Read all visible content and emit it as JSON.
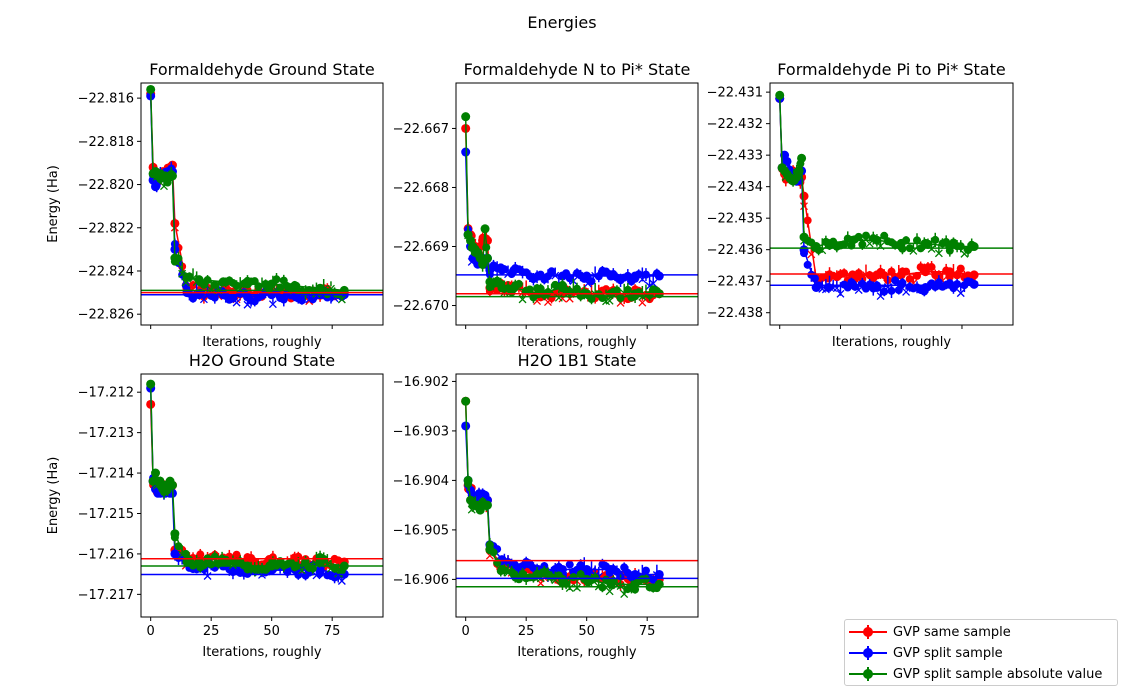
{
  "figure": {
    "title": "Energies"
  },
  "colors": {
    "same": "#ff0000",
    "split": "#0000ff",
    "abs": "#008000"
  },
  "legend": {
    "placement": "bottom-right",
    "entries": [
      {
        "label": "GVP same sample",
        "color": "#ff0000"
      },
      {
        "label": "GVP split sample",
        "color": "#0000ff"
      },
      {
        "label": "GVP split sample absolute value",
        "color": "#008000"
      }
    ]
  },
  "chart_data": [
    {
      "type": "line",
      "title": "Formaldehyde Ground State",
      "xlabel": "Iterations, roughly",
      "ylabel": "Energy (Ha)",
      "xlim": [
        -4,
        96
      ],
      "ylim": [
        -22.8265,
        -22.8153
      ],
      "x_ticks": [],
      "y_ticks": [
        "−22.816",
        "−22.818",
        "−22.820",
        "−22.822",
        "−22.824",
        "−22.826"
      ],
      "y_tick_values": [
        -22.816,
        -22.818,
        -22.82,
        -22.822,
        -22.824,
        -22.826
      ],
      "reference_lines": {
        "same": -22.825,
        "split": -22.8251,
        "abs": -22.8249
      },
      "series": [
        {
          "name": "GVP same sample",
          "key": "same",
          "x": [
            0,
            1,
            2,
            3,
            4,
            5,
            6,
            7,
            8,
            9,
            10,
            15,
            20,
            30,
            40,
            50,
            60,
            70,
            80
          ],
          "y": [
            -22.8158,
            -22.8192,
            -22.8194,
            -22.8195,
            -22.8195,
            -22.8194,
            -22.8194,
            -22.8193,
            -22.8192,
            -22.8191,
            -22.8218,
            -22.8248,
            -22.825,
            -22.8249,
            -22.825,
            -22.8249,
            -22.8251,
            -22.8249,
            -22.825
          ]
        },
        {
          "name": "GVP split sample",
          "key": "split",
          "x": [
            0,
            1,
            2,
            3,
            4,
            5,
            6,
            7,
            8,
            9,
            10,
            15,
            20,
            30,
            40,
            50,
            60,
            70,
            80
          ],
          "y": [
            -22.8159,
            -22.8198,
            -22.8201,
            -22.8196,
            -22.8195,
            -22.8195,
            -22.8196,
            -22.8194,
            -22.8194,
            -22.8194,
            -22.823,
            -22.825,
            -22.8251,
            -22.8251,
            -22.8252,
            -22.8251,
            -22.8252,
            -22.8251,
            -22.8251
          ]
        },
        {
          "name": "GVP split sample absolute value",
          "key": "abs",
          "x": [
            0,
            1,
            2,
            3,
            4,
            5,
            6,
            7,
            8,
            9,
            10,
            15,
            20,
            30,
            40,
            50,
            60,
            70,
            80
          ],
          "y": [
            -22.8156,
            -22.8195,
            -22.8194,
            -22.8196,
            -22.8195,
            -22.8196,
            -22.8196,
            -22.8197,
            -22.8196,
            -22.8196,
            -22.8234,
            -22.8243,
            -22.8244,
            -22.8245,
            -22.8246,
            -22.8246,
            -22.8247,
            -22.8248,
            -22.8249
          ]
        }
      ]
    },
    {
      "type": "line",
      "title": "Formaldehyde N to Pi* State",
      "xlabel": "Iterations, roughly",
      "ylabel": "",
      "xlim": [
        -4,
        96
      ],
      "ylim": [
        -22.67033,
        -22.66623
      ],
      "x_ticks": [],
      "y_ticks": [
        "−22.667",
        "−22.668",
        "−22.669",
        "−22.670"
      ],
      "y_tick_values": [
        -22.667,
        -22.668,
        -22.669,
        -22.67
      ],
      "reference_lines": {
        "same": -22.6698,
        "split": -22.66948,
        "abs": -22.66985
      },
      "series": [
        {
          "name": "GVP same sample",
          "key": "same",
          "x": [
            0,
            1,
            2,
            3,
            4,
            5,
            6,
            7,
            8,
            9,
            10,
            15,
            20,
            30,
            40,
            50,
            60,
            70,
            80
          ],
          "y": [
            -22.667,
            -22.6687,
            -22.6688,
            -22.669,
            -22.669,
            -22.6691,
            -22.669,
            -22.6689,
            -22.669,
            -22.6689,
            -22.6697,
            -22.6697,
            -22.6697,
            -22.6698,
            -22.6698,
            -22.6698,
            -22.6698,
            -22.6698,
            -22.6698
          ]
        },
        {
          "name": "GVP split sample",
          "key": "split",
          "x": [
            0,
            1,
            2,
            3,
            4,
            5,
            6,
            7,
            8,
            9,
            10,
            15,
            20,
            30,
            40,
            50,
            60,
            70,
            80
          ],
          "y": [
            -22.6674,
            -22.6688,
            -22.669,
            -22.6692,
            -22.6692,
            -22.6693,
            -22.6692,
            -22.6692,
            -22.6693,
            -22.6692,
            -22.6694,
            -22.6694,
            -22.6694,
            -22.6695,
            -22.6695,
            -22.6695,
            -22.6695,
            -22.6695,
            -22.6695
          ]
        },
        {
          "name": "GVP split sample absolute value",
          "key": "abs",
          "x": [
            0,
            1,
            2,
            3,
            4,
            5,
            6,
            7,
            8,
            9,
            10,
            15,
            20,
            30,
            40,
            50,
            60,
            70,
            80
          ],
          "y": [
            -22.6668,
            -22.6688,
            -22.6689,
            -22.669,
            -22.6691,
            -22.6691,
            -22.6692,
            -22.6693,
            -22.6687,
            -22.6692,
            -22.6696,
            -22.6697,
            -22.6697,
            -22.6698,
            -22.6697,
            -22.6698,
            -22.6698,
            -22.6698,
            -22.6698
          ]
        }
      ]
    },
    {
      "type": "line",
      "title": "Formaldehyde Pi to Pi* State",
      "xlabel": "Iterations, roughly",
      "ylabel": "",
      "xlim": [
        -4,
        96
      ],
      "ylim": [
        -22.43839,
        -22.43071
      ],
      "x_ticks": [],
      "y_ticks": [
        "−22.431",
        "−22.432",
        "−22.433",
        "−22.434",
        "−22.435",
        "−22.436",
        "−22.437",
        "−22.438"
      ],
      "y_tick_values": [
        -22.431,
        -22.432,
        -22.433,
        -22.434,
        -22.435,
        -22.436,
        -22.437,
        -22.438
      ],
      "reference_lines": {
        "same": -22.43677,
        "split": -22.43713,
        "abs": -22.43595
      },
      "series": [
        {
          "name": "GVP same sample",
          "key": "same",
          "x": [
            0,
            1,
            2,
            3,
            4,
            5,
            6,
            7,
            8,
            9,
            10,
            15,
            20,
            30,
            40,
            50,
            60,
            70,
            80
          ],
          "y": [
            -22.4312,
            -22.4334,
            -22.4336,
            -22.4337,
            -22.4336,
            -22.4335,
            -22.4337,
            -22.4338,
            -22.4338,
            -22.4337,
            -22.4343,
            -22.4369,
            -22.4369,
            -22.4368,
            -22.4368,
            -22.4368,
            -22.4367,
            -22.4367,
            -22.4368
          ]
        },
        {
          "name": "GVP split sample",
          "key": "split",
          "x": [
            0,
            1,
            2,
            3,
            4,
            5,
            6,
            7,
            8,
            9,
            10,
            15,
            20,
            30,
            40,
            50,
            60,
            70,
            80
          ],
          "y": [
            -22.4312,
            -22.4334,
            -22.433,
            -22.4332,
            -22.4335,
            -22.4336,
            -22.4336,
            -22.4337,
            -22.4338,
            -22.4335,
            -22.436,
            -22.4372,
            -22.4372,
            -22.4371,
            -22.4372,
            -22.4371,
            -22.4372,
            -22.4371,
            -22.4371
          ]
        },
        {
          "name": "GVP split sample absolute value",
          "key": "abs",
          "x": [
            0,
            1,
            2,
            3,
            4,
            5,
            6,
            7,
            8,
            9,
            10,
            15,
            20,
            30,
            40,
            50,
            60,
            70,
            80
          ],
          "y": [
            -22.4311,
            -22.4334,
            -22.4335,
            -22.4336,
            -22.4337,
            -22.4338,
            -22.4338,
            -22.4337,
            -22.4335,
            -22.4331,
            -22.4356,
            -22.4359,
            -22.4358,
            -22.4357,
            -22.4357,
            -22.4358,
            -22.4358,
            -22.4359,
            -22.4359
          ]
        }
      ]
    },
    {
      "type": "line",
      "title": "H2O Ground State",
      "xlabel": "Iterations, roughly",
      "ylabel": "Energy (Ha)",
      "xlim": [
        -4,
        96
      ],
      "ylim": [
        -17.21756,
        -17.21155
      ],
      "x_ticks": [
        "0",
        "25",
        "50",
        "75"
      ],
      "x_tick_values": [
        0,
        25,
        50,
        75
      ],
      "y_ticks": [
        "−17.212",
        "−17.213",
        "−17.214",
        "−17.215",
        "−17.216",
        "−17.217"
      ],
      "y_tick_values": [
        -17.212,
        -17.213,
        -17.214,
        -17.215,
        -17.216,
        -17.217
      ],
      "reference_lines": {
        "same": -17.21612,
        "split": -17.21651,
        "abs": -17.2163
      },
      "series": [
        {
          "name": "GVP same sample",
          "key": "same",
          "x": [
            0,
            1,
            2,
            3,
            4,
            5,
            6,
            7,
            8,
            9,
            10,
            15,
            20,
            30,
            40,
            50,
            60,
            70,
            80
          ],
          "y": [
            -17.2123,
            -17.2142,
            -17.2143,
            -17.2144,
            -17.2143,
            -17.2143,
            -17.2144,
            -17.2143,
            -17.2143,
            -17.2143,
            -17.2159,
            -17.2161,
            -17.2161,
            -17.2161,
            -17.2162,
            -17.2162,
            -17.2162,
            -17.2162,
            -17.2162
          ]
        },
        {
          "name": "GVP split sample",
          "key": "split",
          "x": [
            0,
            1,
            2,
            3,
            4,
            5,
            6,
            7,
            8,
            9,
            10,
            15,
            20,
            30,
            40,
            50,
            60,
            70,
            80
          ],
          "y": [
            -17.2119,
            -17.2142,
            -17.2144,
            -17.2145,
            -17.2145,
            -17.2144,
            -17.2145,
            -17.2144,
            -17.2145,
            -17.2145,
            -17.216,
            -17.2162,
            -17.2163,
            -17.2163,
            -17.2164,
            -17.2164,
            -17.2164,
            -17.2164,
            -17.2165
          ]
        },
        {
          "name": "GVP split sample absolute value",
          "key": "abs",
          "x": [
            0,
            1,
            2,
            3,
            4,
            5,
            6,
            7,
            8,
            9,
            10,
            15,
            20,
            30,
            40,
            50,
            60,
            70,
            80
          ],
          "y": [
            -17.2118,
            -17.2142,
            -17.214,
            -17.2142,
            -17.2143,
            -17.2144,
            -17.2143,
            -17.2143,
            -17.2142,
            -17.2143,
            -17.2155,
            -17.2162,
            -17.2162,
            -17.2162,
            -17.2163,
            -17.2163,
            -17.2163,
            -17.2162,
            -17.2163
          ]
        }
      ]
    },
    {
      "type": "line",
      "title": "H2O 1B1 State",
      "xlabel": "Iterations, roughly",
      "ylabel": "",
      "xlim": [
        -4,
        96
      ],
      "ylim": [
        -16.90676,
        -16.90185
      ],
      "x_ticks": [
        "0",
        "25",
        "50",
        "75"
      ],
      "x_tick_values": [
        0,
        25,
        50,
        75
      ],
      "y_ticks": [
        "−16.902",
        "−16.903",
        "−16.904",
        "−16.905",
        "−16.906"
      ],
      "y_tick_values": [
        -16.902,
        -16.903,
        -16.904,
        -16.905,
        -16.906
      ],
      "reference_lines": {
        "same": -16.90562,
        "split": -16.90598,
        "abs": -16.90615
      },
      "series": [
        {
          "name": "GVP same sample",
          "key": "same",
          "x": [
            0,
            1,
            2,
            3,
            4,
            5,
            6,
            7,
            8,
            9,
            10,
            15,
            20,
            30,
            40,
            50,
            60,
            70,
            80
          ],
          "y": [
            -16.9024,
            -16.9041,
            -16.9042,
            -16.9043,
            -16.9044,
            -16.9044,
            -16.9044,
            -16.9044,
            -16.9044,
            -16.9044,
            -16.9054,
            -16.9057,
            -16.9058,
            -16.9059,
            -16.906,
            -16.9059,
            -16.906,
            -16.906,
            -16.906
          ]
        },
        {
          "name": "GVP split sample",
          "key": "split",
          "x": [
            0,
            1,
            2,
            3,
            4,
            5,
            6,
            7,
            8,
            9,
            10,
            15,
            20,
            30,
            40,
            50,
            60,
            70,
            80
          ],
          "y": [
            -16.9029,
            -16.904,
            -16.9042,
            -16.9043,
            -16.9044,
            -16.9043,
            -16.9043,
            -16.9043,
            -16.9043,
            -16.9044,
            -16.9053,
            -16.9056,
            -16.9057,
            -16.9058,
            -16.9058,
            -16.9058,
            -16.9058,
            -16.9059,
            -16.9059
          ]
        },
        {
          "name": "GVP split sample absolute value",
          "key": "abs",
          "x": [
            0,
            1,
            2,
            3,
            4,
            5,
            6,
            7,
            8,
            9,
            10,
            15,
            20,
            30,
            40,
            50,
            60,
            70,
            80
          ],
          "y": [
            -16.9024,
            -16.904,
            -16.9044,
            -16.9045,
            -16.9045,
            -16.9045,
            -16.9046,
            -16.9045,
            -16.9045,
            -16.9045,
            -16.9054,
            -16.9058,
            -16.9059,
            -16.9059,
            -16.906,
            -16.906,
            -16.9061,
            -16.9061,
            -16.9061
          ]
        }
      ]
    }
  ]
}
